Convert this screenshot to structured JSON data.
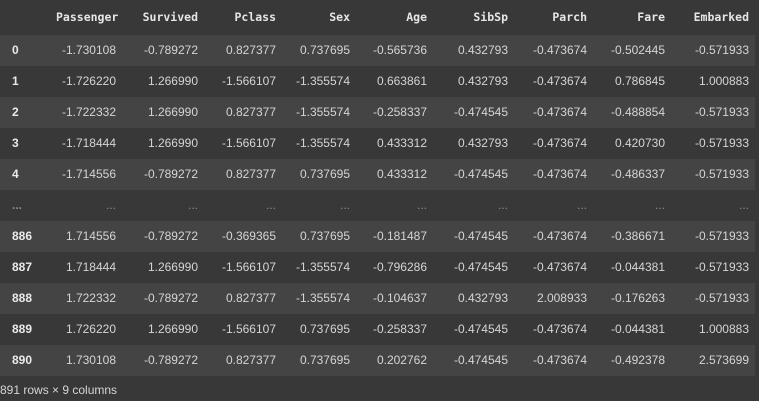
{
  "columns": [
    "",
    "Passenger",
    "Survived",
    "Pclass",
    "Sex",
    "Age",
    "SibSp",
    "Parch",
    "Fare",
    "Embarked"
  ],
  "rows": [
    [
      "0",
      "-1.730108",
      "-0.789272",
      "0.827377",
      "0.737695",
      "-0.565736",
      "0.432793",
      "-0.473674",
      "-0.502445",
      "-0.571933"
    ],
    [
      "1",
      "-1.726220",
      "1.266990",
      "-1.566107",
      "-1.355574",
      "0.663861",
      "0.432793",
      "-0.473674",
      "0.786845",
      "1.000883"
    ],
    [
      "2",
      "-1.722332",
      "1.266990",
      "0.827377",
      "-1.355574",
      "-0.258337",
      "-0.474545",
      "-0.473674",
      "-0.488854",
      "-0.571933"
    ],
    [
      "3",
      "-1.718444",
      "1.266990",
      "-1.566107",
      "-1.355574",
      "0.433312",
      "0.432793",
      "-0.473674",
      "0.420730",
      "-0.571933"
    ],
    [
      "4",
      "-1.714556",
      "-0.789272",
      "0.827377",
      "0.737695",
      "0.433312",
      "-0.474545",
      "-0.473674",
      "-0.486337",
      "-0.571933"
    ],
    [
      "...",
      "...",
      "...",
      "...",
      "...",
      "...",
      "...",
      "...",
      "...",
      "..."
    ],
    [
      "886",
      "1.714556",
      "-0.789272",
      "-0.369365",
      "0.737695",
      "-0.181487",
      "-0.474545",
      "-0.473674",
      "-0.386671",
      "-0.571933"
    ],
    [
      "887",
      "1.718444",
      "1.266990",
      "-1.566107",
      "-1.355574",
      "-0.796286",
      "-0.474545",
      "-0.473674",
      "-0.044381",
      "-0.571933"
    ],
    [
      "888",
      "1.722332",
      "-0.789272",
      "0.827377",
      "-1.355574",
      "-0.104637",
      "0.432793",
      "2.008933",
      "-0.176263",
      "-0.571933"
    ],
    [
      "889",
      "1.726220",
      "1.266990",
      "-1.566107",
      "0.737695",
      "-0.258337",
      "-0.474545",
      "-0.473674",
      "-0.044381",
      "1.000883"
    ],
    [
      "890",
      "1.730108",
      "-0.789272",
      "0.827377",
      "0.737695",
      "0.202762",
      "-0.474545",
      "-0.473674",
      "-0.492378",
      "2.573699"
    ]
  ],
  "footer": "891 rows × 9 columns",
  "colors": {
    "background": "#383838",
    "row_alt": "#444444",
    "text": "#d5d5d5"
  }
}
